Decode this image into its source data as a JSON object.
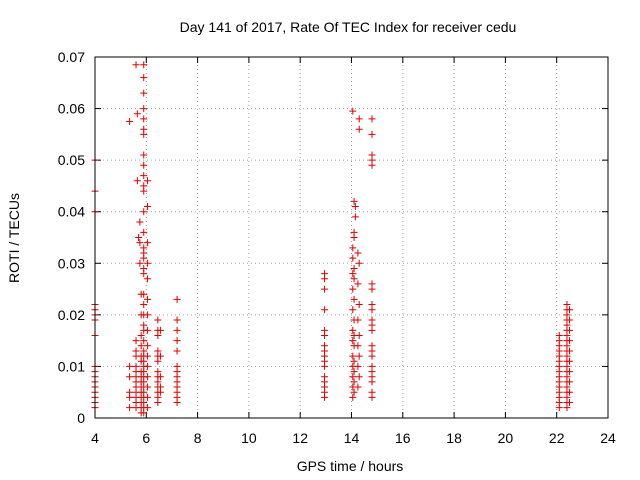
{
  "chart_data": {
    "type": "scatter",
    "title": "Day 141 of 2017, Rate Of TEC Index for receiver cedu",
    "xlabel": "GPS time / hours",
    "ylabel": "ROTI / TECUs",
    "xlim": [
      4,
      24
    ],
    "ylim": [
      0,
      0.07
    ],
    "x_ticks": [
      4,
      6,
      8,
      10,
      12,
      14,
      16,
      18,
      20,
      22,
      24
    ],
    "x_tick_labels": [
      "4",
      "6",
      "8",
      "10",
      "12",
      "14",
      "16",
      "18",
      "20",
      "22",
      "24"
    ],
    "y_ticks": [
      0,
      0.01,
      0.02,
      0.03,
      0.04,
      0.05,
      0.06,
      0.07
    ],
    "y_tick_labels": [
      "0",
      "0.01",
      "0.02",
      "0.03",
      "0.04",
      "0.05",
      "0.06",
      "0.07"
    ],
    "grid": true,
    "marker": "+",
    "color": "#e00000",
    "series": [
      {
        "name": "ROTI",
        "points": [
          [
            4.0,
            0.05
          ],
          [
            4.0,
            0.044
          ],
          [
            4.0,
            0.04
          ],
          [
            4.0,
            0.022
          ],
          [
            4.0,
            0.021
          ],
          [
            4.0,
            0.02
          ],
          [
            4.0,
            0.019
          ],
          [
            4.0,
            0.016
          ],
          [
            4.0,
            0.01
          ],
          [
            4.0,
            0.009
          ],
          [
            4.0,
            0.008
          ],
          [
            4.0,
            0.007
          ],
          [
            4.0,
            0.006
          ],
          [
            4.0,
            0.005
          ],
          [
            4.0,
            0.004
          ],
          [
            4.0,
            0.003
          ],
          [
            4.0,
            0.002
          ],
          [
            5.35,
            0.0575
          ],
          [
            5.35,
            0.01
          ],
          [
            5.35,
            0.008
          ],
          [
            5.35,
            0.005
          ],
          [
            5.35,
            0.004
          ],
          [
            5.35,
            0.002
          ],
          [
            5.6,
            0.0685
          ],
          [
            5.65,
            0.059
          ],
          [
            5.65,
            0.046
          ],
          [
            5.7,
            0.035
          ],
          [
            5.6,
            0.015
          ],
          [
            5.6,
            0.013
          ],
          [
            5.6,
            0.012
          ],
          [
            5.6,
            0.01
          ],
          [
            5.6,
            0.009
          ],
          [
            5.6,
            0.008
          ],
          [
            5.6,
            0.007
          ],
          [
            5.6,
            0.006
          ],
          [
            5.6,
            0.005
          ],
          [
            5.6,
            0.004
          ],
          [
            5.6,
            0.003
          ],
          [
            5.6,
            0.002
          ],
          [
            5.75,
            0.038
          ],
          [
            5.75,
            0.034
          ],
          [
            5.75,
            0.03
          ],
          [
            5.8,
            0.024
          ],
          [
            5.8,
            0.02
          ],
          [
            5.8,
            0.016
          ],
          [
            5.8,
            0.014
          ],
          [
            5.8,
            0.012
          ],
          [
            5.8,
            0.011
          ],
          [
            5.8,
            0.009
          ],
          [
            5.8,
            0.008
          ],
          [
            5.8,
            0.007
          ],
          [
            5.8,
            0.006
          ],
          [
            5.8,
            0.005
          ],
          [
            5.8,
            0.004
          ],
          [
            5.8,
            0.003
          ],
          [
            5.8,
            0.002
          ],
          [
            5.8,
            0.001
          ],
          [
            5.9,
            0.0685
          ],
          [
            5.9,
            0.066
          ],
          [
            5.9,
            0.063
          ],
          [
            5.9,
            0.06
          ],
          [
            5.9,
            0.058
          ],
          [
            5.9,
            0.056
          ],
          [
            5.9,
            0.055
          ],
          [
            5.9,
            0.051
          ],
          [
            5.9,
            0.049
          ],
          [
            5.9,
            0.047
          ],
          [
            5.9,
            0.045
          ],
          [
            5.9,
            0.044
          ],
          [
            5.9,
            0.04
          ],
          [
            5.9,
            0.036
          ],
          [
            5.9,
            0.033
          ],
          [
            5.9,
            0.032
          ],
          [
            5.9,
            0.031
          ],
          [
            5.9,
            0.029
          ],
          [
            5.9,
            0.028
          ],
          [
            5.9,
            0.024
          ],
          [
            5.9,
            0.022
          ],
          [
            5.9,
            0.02
          ],
          [
            5.9,
            0.018
          ],
          [
            5.9,
            0.017
          ],
          [
            5.9,
            0.015
          ],
          [
            5.9,
            0.013
          ],
          [
            5.9,
            0.012
          ],
          [
            5.9,
            0.011
          ],
          [
            5.9,
            0.01
          ],
          [
            5.9,
            0.009
          ],
          [
            5.9,
            0.008
          ],
          [
            5.9,
            0.007
          ],
          [
            5.9,
            0.006
          ],
          [
            5.9,
            0.005
          ],
          [
            5.9,
            0.004
          ],
          [
            5.9,
            0.003
          ],
          [
            5.9,
            0.002
          ],
          [
            5.9,
            0.001
          ],
          [
            6.05,
            0.046
          ],
          [
            6.05,
            0.041
          ],
          [
            6.05,
            0.034
          ],
          [
            6.05,
            0.03
          ],
          [
            6.05,
            0.027
          ],
          [
            6.05,
            0.023
          ],
          [
            6.05,
            0.02
          ],
          [
            6.05,
            0.017
          ],
          [
            6.05,
            0.014
          ],
          [
            6.05,
            0.012
          ],
          [
            6.05,
            0.01
          ],
          [
            6.05,
            0.008
          ],
          [
            6.05,
            0.006
          ],
          [
            6.05,
            0.004
          ],
          [
            6.05,
            0.002
          ],
          [
            6.45,
            0.019
          ],
          [
            6.45,
            0.017
          ],
          [
            6.45,
            0.016
          ],
          [
            6.45,
            0.013
          ],
          [
            6.45,
            0.012
          ],
          [
            6.45,
            0.011
          ],
          [
            6.45,
            0.009
          ],
          [
            6.45,
            0.008
          ],
          [
            6.45,
            0.007
          ],
          [
            6.45,
            0.006
          ],
          [
            6.45,
            0.005
          ],
          [
            6.45,
            0.004
          ],
          [
            6.45,
            0.003
          ],
          [
            6.55,
            0.017
          ],
          [
            6.55,
            0.012
          ],
          [
            6.55,
            0.008
          ],
          [
            6.55,
            0.006
          ],
          [
            6.55,
            0.005
          ],
          [
            7.2,
            0.023
          ],
          [
            7.2,
            0.019
          ],
          [
            7.2,
            0.017
          ],
          [
            7.2,
            0.015
          ],
          [
            7.2,
            0.013
          ],
          [
            7.2,
            0.01
          ],
          [
            7.2,
            0.009
          ],
          [
            7.2,
            0.008
          ],
          [
            7.2,
            0.007
          ],
          [
            7.2,
            0.006
          ],
          [
            7.2,
            0.005
          ],
          [
            7.2,
            0.004
          ],
          [
            7.2,
            0.003
          ],
          [
            12.95,
            0.028
          ],
          [
            12.95,
            0.027
          ],
          [
            12.95,
            0.025
          ],
          [
            12.95,
            0.021
          ],
          [
            12.95,
            0.017
          ],
          [
            12.95,
            0.016
          ],
          [
            12.95,
            0.014
          ],
          [
            12.95,
            0.013
          ],
          [
            12.95,
            0.012
          ],
          [
            12.95,
            0.011
          ],
          [
            12.95,
            0.01
          ],
          [
            12.95,
            0.008
          ],
          [
            12.95,
            0.007
          ],
          [
            12.95,
            0.006
          ],
          [
            12.95,
            0.005
          ],
          [
            12.95,
            0.004
          ],
          [
            14.05,
            0.0595
          ],
          [
            14.1,
            0.042
          ],
          [
            14.15,
            0.041
          ],
          [
            14.15,
            0.039
          ],
          [
            14.1,
            0.036
          ],
          [
            14.1,
            0.035
          ],
          [
            14.05,
            0.033
          ],
          [
            14.05,
            0.031
          ],
          [
            14.1,
            0.029
          ],
          [
            14.05,
            0.028
          ],
          [
            14.1,
            0.027
          ],
          [
            14.05,
            0.025
          ],
          [
            14.1,
            0.023
          ],
          [
            14.05,
            0.021
          ],
          [
            14.1,
            0.019
          ],
          [
            14.05,
            0.017
          ],
          [
            14.1,
            0.016
          ],
          [
            14.05,
            0.015
          ],
          [
            14.1,
            0.014
          ],
          [
            14.05,
            0.012
          ],
          [
            14.1,
            0.011
          ],
          [
            14.05,
            0.01
          ],
          [
            14.1,
            0.009
          ],
          [
            14.05,
            0.008
          ],
          [
            14.1,
            0.007
          ],
          [
            14.05,
            0.006
          ],
          [
            14.1,
            0.005
          ],
          [
            14.05,
            0.004
          ],
          [
            14.3,
            0.058
          ],
          [
            14.3,
            0.056
          ],
          [
            14.25,
            0.032
          ],
          [
            14.3,
            0.03
          ],
          [
            14.25,
            0.026
          ],
          [
            14.3,
            0.022
          ],
          [
            14.25,
            0.019
          ],
          [
            14.3,
            0.016
          ],
          [
            14.25,
            0.014
          ],
          [
            14.3,
            0.012
          ],
          [
            14.25,
            0.01
          ],
          [
            14.3,
            0.008
          ],
          [
            14.25,
            0.006
          ],
          [
            14.8,
            0.058
          ],
          [
            14.8,
            0.055
          ],
          [
            14.8,
            0.051
          ],
          [
            14.8,
            0.05
          ],
          [
            14.8,
            0.049
          ],
          [
            14.8,
            0.026
          ],
          [
            14.8,
            0.025
          ],
          [
            14.8,
            0.022
          ],
          [
            14.8,
            0.021
          ],
          [
            14.8,
            0.019
          ],
          [
            14.8,
            0.018
          ],
          [
            14.8,
            0.017
          ],
          [
            14.8,
            0.014
          ],
          [
            14.8,
            0.013
          ],
          [
            14.8,
            0.012
          ],
          [
            14.8,
            0.01
          ],
          [
            14.8,
            0.009
          ],
          [
            14.8,
            0.008
          ],
          [
            14.8,
            0.007
          ],
          [
            14.8,
            0.005
          ],
          [
            14.8,
            0.004
          ],
          [
            22.1,
            0.016
          ],
          [
            22.1,
            0.015
          ],
          [
            22.1,
            0.014
          ],
          [
            22.1,
            0.013
          ],
          [
            22.1,
            0.012
          ],
          [
            22.1,
            0.011
          ],
          [
            22.1,
            0.01
          ],
          [
            22.1,
            0.009
          ],
          [
            22.1,
            0.008
          ],
          [
            22.1,
            0.007
          ],
          [
            22.1,
            0.006
          ],
          [
            22.1,
            0.005
          ],
          [
            22.1,
            0.004
          ],
          [
            22.1,
            0.003
          ],
          [
            22.1,
            0.002
          ],
          [
            22.4,
            0.022
          ],
          [
            22.4,
            0.021
          ],
          [
            22.4,
            0.02
          ],
          [
            22.4,
            0.019
          ],
          [
            22.4,
            0.018
          ],
          [
            22.4,
            0.017
          ],
          [
            22.4,
            0.016
          ],
          [
            22.4,
            0.015
          ],
          [
            22.4,
            0.014
          ],
          [
            22.4,
            0.013
          ],
          [
            22.4,
            0.012
          ],
          [
            22.4,
            0.011
          ],
          [
            22.4,
            0.01
          ],
          [
            22.4,
            0.009
          ],
          [
            22.4,
            0.008
          ],
          [
            22.4,
            0.007
          ],
          [
            22.4,
            0.006
          ],
          [
            22.4,
            0.005
          ],
          [
            22.4,
            0.004
          ],
          [
            22.4,
            0.003
          ],
          [
            22.4,
            0.002
          ],
          [
            22.5,
            0.021
          ],
          [
            22.5,
            0.019
          ],
          [
            22.5,
            0.017
          ],
          [
            22.5,
            0.015
          ],
          [
            22.5,
            0.013
          ],
          [
            22.5,
            0.011
          ],
          [
            22.5,
            0.009
          ],
          [
            22.5,
            0.007
          ],
          [
            22.5,
            0.005
          ],
          [
            22.5,
            0.003
          ]
        ]
      }
    ]
  }
}
